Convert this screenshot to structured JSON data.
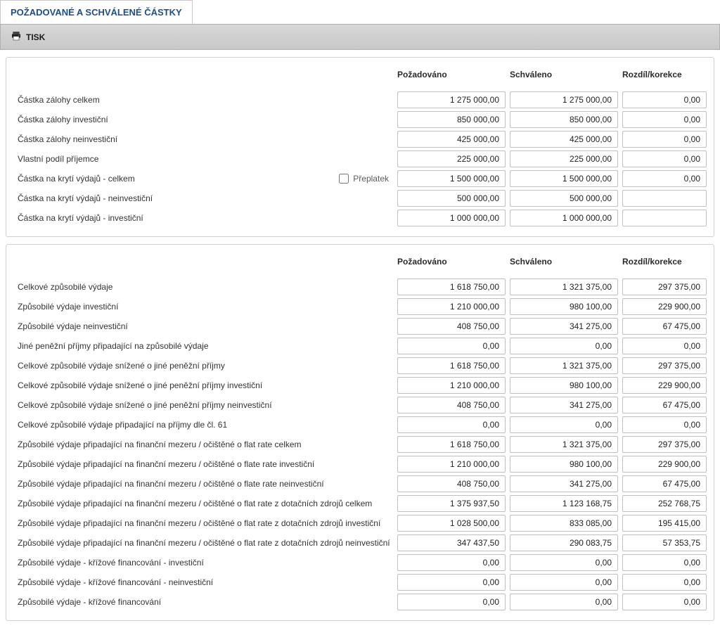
{
  "tab_title": "POŽADOVANÉ A SCHVÁLENÉ ČÁSTKY",
  "toolbar": {
    "print_label": "TISK"
  },
  "columns": {
    "requested": "Požadováno",
    "approved": "Schváleno",
    "diff": "Rozdíl/korekce"
  },
  "section1": {
    "checkbox_label": "Přeplatek",
    "checkbox_checked": false,
    "rows": [
      {
        "label": "Částka zálohy celkem",
        "requested": "1 275 000,00",
        "approved": "1 275 000,00",
        "diff": "0,00",
        "has_extra": false
      },
      {
        "label": "Částka zálohy investiční",
        "requested": "850 000,00",
        "approved": "850 000,00",
        "diff": "0,00",
        "has_extra": false
      },
      {
        "label": "Částka zálohy neinvestiční",
        "requested": "425 000,00",
        "approved": "425 000,00",
        "diff": "0,00",
        "has_extra": false
      },
      {
        "label": "Vlastní podíl příjemce",
        "requested": "225 000,00",
        "approved": "225 000,00",
        "diff": "0,00",
        "has_extra": false
      },
      {
        "label": "Částka na krytí výdajů - celkem",
        "requested": "1 500 000,00",
        "approved": "1 500 000,00",
        "diff": "0,00",
        "has_extra": true
      },
      {
        "label": "Částka na krytí výdajů - neinvestiční",
        "requested": "500 000,00",
        "approved": "500 000,00",
        "diff": "",
        "has_extra": false
      },
      {
        "label": "Částka na krytí výdajů - investiční",
        "requested": "1 000 000,00",
        "approved": "1 000 000,00",
        "diff": "",
        "has_extra": false
      }
    ]
  },
  "section2": {
    "rows": [
      {
        "label": "Celkové způsobilé výdaje",
        "requested": "1 618 750,00",
        "approved": "1 321 375,00",
        "diff": "297 375,00"
      },
      {
        "label": "Způsobilé výdaje investiční",
        "requested": "1 210 000,00",
        "approved": "980 100,00",
        "diff": "229 900,00"
      },
      {
        "label": "Způsobilé výdaje neinvestiční",
        "requested": "408 750,00",
        "approved": "341 275,00",
        "diff": "67 475,00"
      },
      {
        "label": "Jiné peněžní příjmy připadající na způsobilé výdaje",
        "requested": "0,00",
        "approved": "0,00",
        "diff": "0,00"
      },
      {
        "label": "Celkové způsobilé výdaje snížené o jiné peněžní příjmy",
        "requested": "1 618 750,00",
        "approved": "1 321 375,00",
        "diff": "297 375,00"
      },
      {
        "label": "Celkové způsobilé výdaje snížené o jiné peněžní příjmy investiční",
        "requested": "1 210 000,00",
        "approved": "980 100,00",
        "diff": "229 900,00"
      },
      {
        "label": "Celkové způsobilé výdaje snížené o jiné peněžní příjmy neinvestiční",
        "requested": "408 750,00",
        "approved": "341 275,00",
        "diff": "67 475,00"
      },
      {
        "label": "Celkové způsobilé výdaje připadající na příjmy dle čl. 61",
        "requested": "0,00",
        "approved": "0,00",
        "diff": "0,00"
      },
      {
        "label": "Způsobilé výdaje připadající na finanční mezeru / očištěné o flat rate celkem",
        "requested": "1 618 750,00",
        "approved": "1 321 375,00",
        "diff": "297 375,00"
      },
      {
        "label": "Způsobilé výdaje připadající na finanční mezeru / očištěné o flate rate investiční",
        "requested": "1 210 000,00",
        "approved": "980 100,00",
        "diff": "229 900,00"
      },
      {
        "label": "Způsobilé výdaje připadající na finanční mezeru / očištěné o flate rate neinvestiční",
        "requested": "408 750,00",
        "approved": "341 275,00",
        "diff": "67 475,00"
      },
      {
        "label": "Způsobilé výdaje připadající na finanční mezeru / očištěné o flat rate z dotačních zdrojů celkem",
        "requested": "1 375 937,50",
        "approved": "1 123 168,75",
        "diff": "252 768,75"
      },
      {
        "label": "Způsobilé výdaje připadající na finanční mezeru / očištěné o flat rate z dotačních zdrojů investiční",
        "requested": "1 028 500,00",
        "approved": "833 085,00",
        "diff": "195 415,00"
      },
      {
        "label": "Způsobilé výdaje připadající na finanční mezeru / očištěné o flat rate z dotačních zdrojů neinvestiční",
        "requested": "347 437,50",
        "approved": "290 083,75",
        "diff": "57 353,75"
      },
      {
        "label": "Způsobilé výdaje - křížové financování - investiční",
        "requested": "0,00",
        "approved": "0,00",
        "diff": "0,00"
      },
      {
        "label": "Způsobilé výdaje - křížové financování - neinvestiční",
        "requested": "0,00",
        "approved": "0,00",
        "diff": "0,00"
      },
      {
        "label": "Způsobilé výdaje - křížové financování",
        "requested": "0,00",
        "approved": "0,00",
        "diff": "0,00"
      }
    ]
  },
  "colors": {
    "header_text": "#1a4f8f",
    "toolbar_bg_top": "#d8d8d8",
    "toolbar_bg_bottom": "#c8c8c8",
    "panel_border": "#d0d0d0",
    "input_border": "#bfbfbf"
  }
}
